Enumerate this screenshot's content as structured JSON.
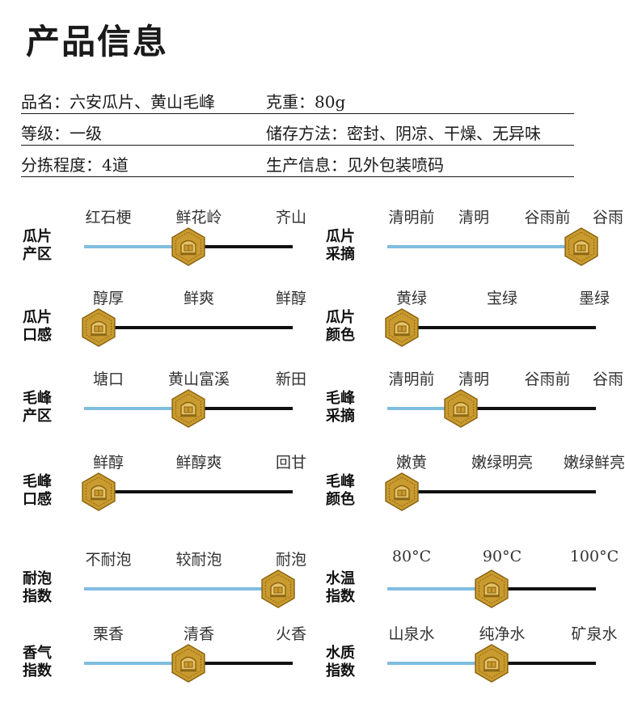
{
  "page": {
    "title": "产品信息"
  },
  "info": {
    "name": "品名：六安瓜片、黄山毛峰",
    "weight": "克重：80g",
    "grade": "等级：一级",
    "storage": "储存方法：密封、阴凉、干燥、无异味",
    "sorting": "分拣程度：4道",
    "production": "生产信息：见外包装喷码"
  },
  "colors": {
    "track": "#111111",
    "fill": "#7fbde0",
    "knob_gold": "#c99a2e",
    "knob_dark": "#8a6412"
  },
  "sliders": [
    {
      "label_line1": "瓜片",
      "label_line2": "产区",
      "options": [
        "红石梗",
        "鲜花岭",
        "齐山"
      ],
      "value": 0.5
    },
    {
      "label_line1": "瓜片",
      "label_line2": "采摘",
      "options": [
        "清明前",
        "清明",
        "谷雨前",
        "谷雨"
      ],
      "value": 1.0
    },
    {
      "label_line1": "瓜片",
      "label_line2": "口感",
      "options": [
        "醇厚",
        "鲜爽",
        "鲜醇"
      ],
      "value": 0.0
    },
    {
      "label_line1": "瓜片",
      "label_line2": "颜色",
      "options": [
        "黄绿",
        "宝绿",
        "墨绿"
      ],
      "value": 0.0
    },
    {
      "label_line1": "毛峰",
      "label_line2": "产区",
      "options": [
        "塘口",
        "黄山富溪",
        "新田"
      ],
      "value": 0.5
    },
    {
      "label_line1": "毛峰",
      "label_line2": "采摘",
      "options": [
        "清明前",
        "清明",
        "谷雨前",
        "谷雨"
      ],
      "value": 0.33
    },
    {
      "label_line1": "毛峰",
      "label_line2": "口感",
      "options": [
        "鲜醇",
        "鲜醇爽",
        "回甘"
      ],
      "value": 0.0
    },
    {
      "label_line1": "毛峰",
      "label_line2": "颜色",
      "options": [
        "嫩黄",
        "嫩绿明亮",
        "嫩绿鲜亮"
      ],
      "value": 0.0
    },
    {
      "label_line1": "耐泡",
      "label_line2": "指数",
      "options": [
        "不耐泡",
        "较耐泡",
        "耐泡"
      ],
      "value": 1.0
    },
    {
      "label_line1": "水温",
      "label_line2": "指数",
      "options": [
        "80°C",
        "90°C",
        "100°C"
      ],
      "value": 0.5
    },
    {
      "label_line1": "香气",
      "label_line2": "指数",
      "options": [
        "栗香",
        "清香",
        "火香"
      ],
      "value": 0.5
    },
    {
      "label_line1": "水质",
      "label_line2": "指数",
      "options": [
        "山泉水",
        "纯净水",
        "矿泉水"
      ],
      "value": 0.5
    }
  ]
}
